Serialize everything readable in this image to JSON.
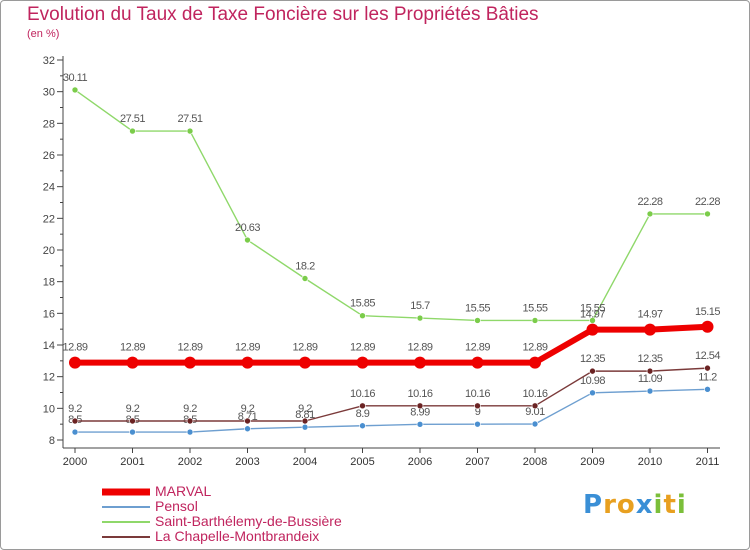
{
  "chart_data": {
    "type": "line",
    "title": "Evolution du Taux de Taxe Foncière sur les Propriétés Bâties",
    "ylabel": "(en %)",
    "xlabel": "",
    "ylim": [
      8,
      32
    ],
    "y_ticks": [
      8,
      10,
      12,
      14,
      16,
      18,
      20,
      22,
      24,
      26,
      28,
      30,
      32
    ],
    "categories": [
      "2000",
      "2001",
      "2002",
      "2003",
      "2004",
      "2005",
      "2006",
      "2007",
      "2008",
      "2009",
      "2010",
      "2011"
    ],
    "series": [
      {
        "name": "Saint-Barthélemy-de-Bussière",
        "color": "#8fd86a",
        "marker": "#7bcc4a",
        "values": [
          30.11,
          27.51,
          27.51,
          20.63,
          18.2,
          15.85,
          15.7,
          15.55,
          15.55,
          15.55,
          22.28,
          22.28
        ],
        "labels": [
          "30.11",
          "27.51",
          "27.51",
          "20.63",
          "18.2",
          "15.85",
          "15.7",
          "15.55",
          "15.55",
          "15.55",
          "22.28",
          "22.28"
        ]
      },
      {
        "name": "Pensol",
        "color": "#6e9fd0",
        "marker": "#4a8fd0",
        "values": [
          8.5,
          8.5,
          8.5,
          8.71,
          8.81,
          8.9,
          8.99,
          9,
          9.01,
          10.98,
          11.09,
          11.2
        ],
        "labels": [
          "8.5",
          "8.5",
          "8.5",
          "8.71",
          "8.81",
          "8.9",
          "8.99",
          "9",
          "9.01",
          "10.98",
          "11.09",
          "11.2"
        ]
      },
      {
        "name": "La Chapelle-Montbrandeix",
        "color": "#7b3a3a",
        "marker": "#6b2323",
        "values": [
          9.2,
          9.2,
          9.2,
          9.2,
          9.2,
          10.16,
          10.16,
          10.16,
          10.16,
          12.35,
          12.35,
          12.54
        ],
        "labels": [
          "9.2",
          "9.2",
          "9.2",
          "9.2",
          "9.2",
          "10.16",
          "10.16",
          "10.16",
          "10.16",
          "12.35",
          "12.35",
          "12.54"
        ]
      },
      {
        "name": "MARVAL",
        "color": "#ee0000",
        "marker": "#ee0000",
        "values": [
          12.89,
          12.89,
          12.89,
          12.89,
          12.89,
          12.89,
          12.89,
          12.89,
          12.89,
          14.97,
          14.97,
          15.15
        ],
        "labels": [
          "12.89",
          "12.89",
          "12.89",
          "12.89",
          "12.89",
          "12.89",
          "12.89",
          "12.89",
          "12.89",
          "14.97",
          "14.97",
          "15.15"
        ]
      }
    ],
    "legend": [
      "MARVAL",
      "Pensol",
      "Saint-Barthélemy-de-Bussière",
      "La Chapelle-Montbrandeix"
    ],
    "legend_position": "bottom-left",
    "grid": false
  },
  "legend_colors": {
    "MARVAL": "#ee0000",
    "Pensol": "#6e9fd0",
    "Saint-Barthélemy-de-Bussière": "#8fd86a",
    "La Chapelle-Montbrandeix": "#7b3a3a"
  },
  "logo": {
    "letters": [
      "P",
      "r",
      "o",
      "x",
      "i",
      "t",
      "i"
    ],
    "colors": [
      "#3a8fd6",
      "#e8a020",
      "#e8a020",
      "#3a8fd6",
      "#7bbf3a",
      "#e8a020",
      "#7bbf3a"
    ]
  },
  "text_color": "#c0245e"
}
